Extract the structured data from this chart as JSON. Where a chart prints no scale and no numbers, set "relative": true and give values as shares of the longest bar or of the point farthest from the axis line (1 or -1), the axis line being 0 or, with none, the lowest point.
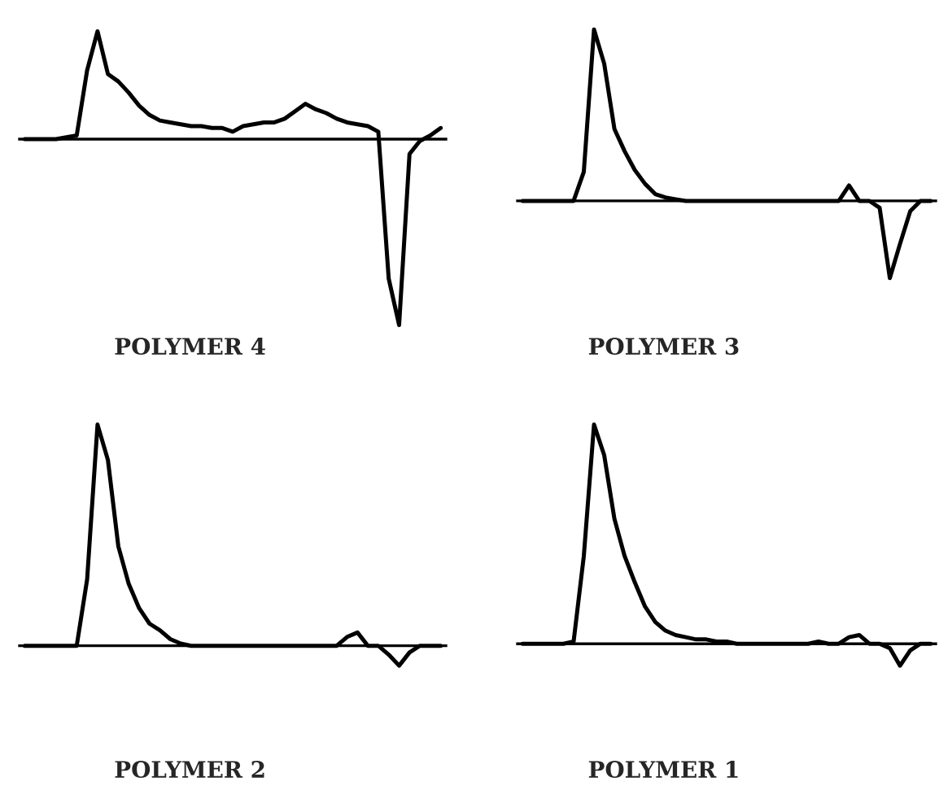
{
  "chart_data": [
    {
      "type": "line",
      "relative": true,
      "xlabel": "POLYMER 4",
      "marker": "none",
      "line_style": "solid",
      "categories": [
        null,
        null,
        null,
        null,
        null,
        null,
        null,
        null,
        null,
        null,
        null,
        null,
        null,
        null,
        null,
        null,
        null,
        null,
        null,
        null,
        null,
        null,
        null,
        null,
        null,
        null,
        null,
        null,
        null,
        null,
        null,
        null,
        null,
        null,
        null,
        null,
        null,
        null,
        null,
        null,
        null
      ],
      "series": [
        {
          "color": "#000000",
          "values": [
            0,
            0,
            0,
            0,
            0.01,
            0.02,
            0.37,
            0.58,
            0.35,
            0.31,
            0.25,
            0.18,
            0.13,
            0.1,
            0.09,
            0.08,
            0.07,
            0.07,
            0.06,
            0.06,
            0.04,
            0.07,
            0.08,
            0.09,
            0.09,
            0.11,
            0.15,
            0.19,
            0.16,
            0.14,
            0.11,
            0.09,
            0.08,
            0.07,
            0.04,
            -0.75,
            -1,
            -0.08,
            -0.01,
            0.02,
            0.06
          ]
        }
      ]
    },
    {
      "type": "line",
      "relative": true,
      "xlabel": "POLYMER 3",
      "marker": "none",
      "line_style": "solid",
      "categories": [
        null,
        null,
        null,
        null,
        null,
        null,
        null,
        null,
        null,
        null,
        null,
        null,
        null,
        null,
        null,
        null,
        null,
        null,
        null,
        null,
        null,
        null,
        null,
        null,
        null,
        null,
        null,
        null,
        null,
        null,
        null,
        null,
        null,
        null,
        null,
        null,
        null,
        null,
        null,
        null,
        null
      ],
      "series": [
        {
          "color": "#000000",
          "values": [
            0,
            0,
            0,
            0,
            0,
            0,
            0.17,
            1,
            0.8,
            0.42,
            0.29,
            0.18,
            0.1,
            0.04,
            0.02,
            0.01,
            0,
            0,
            0,
            0,
            0,
            0,
            0,
            0,
            0,
            0,
            0,
            0,
            0,
            0,
            0,
            0,
            0.09,
            0,
            0,
            -0.04,
            -0.45,
            -0.25,
            -0.06,
            0,
            0
          ]
        }
      ]
    },
    {
      "type": "line",
      "relative": true,
      "xlabel": "POLYMER 2",
      "marker": "none",
      "line_style": "solid",
      "categories": [
        null,
        null,
        null,
        null,
        null,
        null,
        null,
        null,
        null,
        null,
        null,
        null,
        null,
        null,
        null,
        null,
        null,
        null,
        null,
        null,
        null,
        null,
        null,
        null,
        null,
        null,
        null,
        null,
        null,
        null,
        null,
        null,
        null,
        null,
        null,
        null,
        null,
        null,
        null,
        null,
        null
      ],
      "series": [
        {
          "color": "#000000",
          "values": [
            0,
            0,
            0,
            0,
            0,
            0,
            0.3,
            1,
            0.84,
            0.45,
            0.28,
            0.17,
            0.1,
            0.07,
            0.03,
            0.01,
            0,
            0,
            0,
            0,
            0,
            0,
            0,
            0,
            0,
            0,
            0,
            0,
            0,
            0,
            0,
            0.04,
            0.06,
            0,
            0,
            -0.04,
            -0.09,
            -0.03,
            0,
            0,
            0
          ]
        }
      ]
    },
    {
      "type": "line",
      "relative": true,
      "xlabel": "POLYMER 1",
      "marker": "none",
      "line_style": "solid",
      "categories": [
        null,
        null,
        null,
        null,
        null,
        null,
        null,
        null,
        null,
        null,
        null,
        null,
        null,
        null,
        null,
        null,
        null,
        null,
        null,
        null,
        null,
        null,
        null,
        null,
        null,
        null,
        null,
        null,
        null,
        null,
        null,
        null,
        null,
        null,
        null,
        null,
        null,
        null,
        null,
        null,
        null
      ],
      "series": [
        {
          "color": "#000000",
          "values": [
            0,
            0,
            0,
            0,
            0,
            0.01,
            0.4,
            1,
            0.86,
            0.57,
            0.4,
            0.28,
            0.17,
            0.1,
            0.06,
            0.04,
            0.03,
            0.02,
            0.02,
            0.01,
            0.01,
            0,
            0,
            0,
            0,
            0,
            0,
            0,
            0,
            0.01,
            0,
            0,
            0.03,
            0.04,
            0,
            0,
            -0.02,
            -0.1,
            -0.03,
            0,
            0
          ]
        }
      ]
    }
  ]
}
